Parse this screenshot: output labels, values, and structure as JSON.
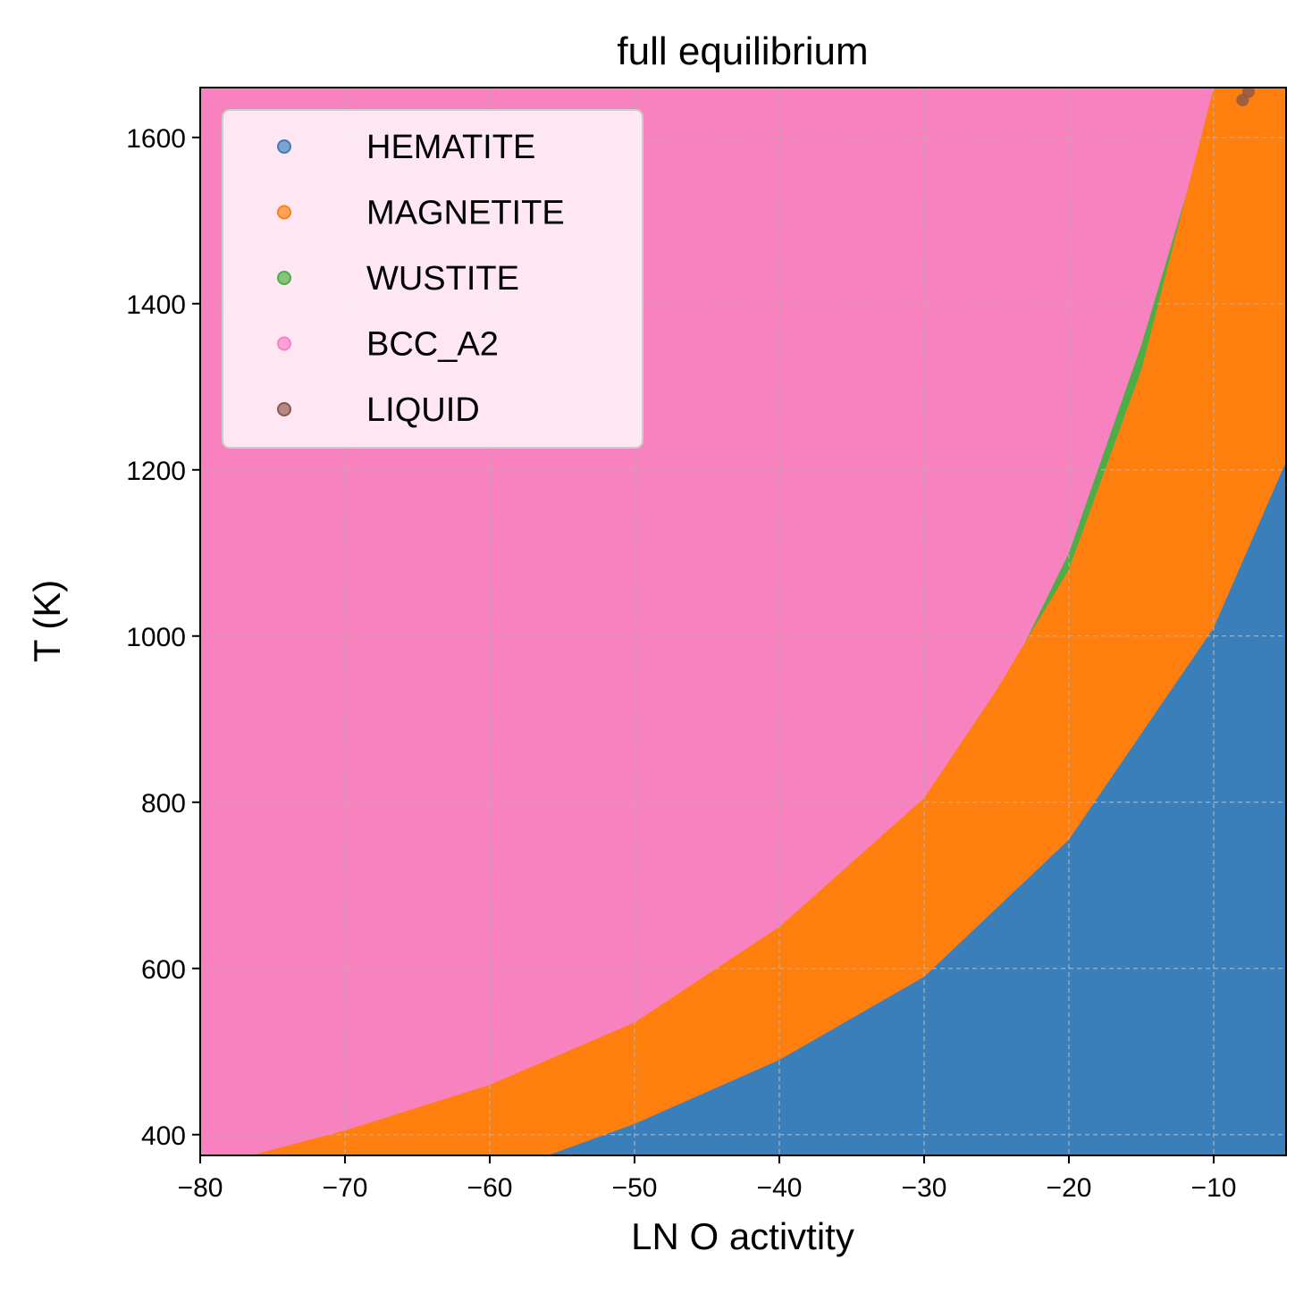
{
  "chart_data": {
    "type": "scatter",
    "title": "full equilibrium",
    "xlabel": "LN O activtity",
    "ylabel": "T (K)",
    "xlim": [
      -80,
      -5
    ],
    "ylim": [
      375,
      1660
    ],
    "xticks": [
      -80,
      -70,
      -60,
      -50,
      -40,
      -30,
      -20,
      -10
    ],
    "yticks": [
      400,
      600,
      800,
      1000,
      1200,
      1400,
      1600
    ],
    "xtick_labels": [
      "−80",
      "−70",
      "−60",
      "−50",
      "−40",
      "−30",
      "−20",
      "−10"
    ],
    "ytick_labels": [
      "400",
      "600",
      "800",
      "1000",
      "1200",
      "1400",
      "1600"
    ],
    "grid": true,
    "legend_position": "top-left",
    "series": [
      {
        "name": "HEMATITE",
        "color": "#3a7fba"
      },
      {
        "name": "MAGNETITE",
        "color": "#ff7f0e"
      },
      {
        "name": "WUSTITE",
        "color": "#4cae44"
      },
      {
        "name": "BCC_A2",
        "color": "#f882c0"
      },
      {
        "name": "LIQUID",
        "color": "#8c564b"
      }
    ],
    "phase_boundaries": {
      "hematite_magnetite": [
        [
          -56,
          375
        ],
        [
          -50,
          413
        ],
        [
          -40,
          490
        ],
        [
          -30,
          590
        ],
        [
          -20,
          755
        ],
        [
          -10,
          1010
        ],
        [
          -5,
          1210
        ]
      ],
      "magnetite_bcc_a2": [
        [
          -76.5,
          375
        ],
        [
          -70,
          405
        ],
        [
          -60,
          460
        ],
        [
          -50,
          535
        ],
        [
          -40,
          650
        ],
        [
          -30,
          805
        ],
        [
          -25,
          935
        ],
        [
          -20,
          1080
        ],
        [
          -15,
          1320
        ],
        [
          -10,
          1660
        ]
      ],
      "wustite_bcc_a2": [
        [
          -24.5,
          940
        ],
        [
          -20,
          1100
        ],
        [
          -15,
          1350
        ],
        [
          -12,
          1525
        ],
        [
          -9.8,
          1660
        ]
      ],
      "magnetite_wustite": [
        [
          -24.5,
          940
        ],
        [
          -20,
          1080
        ],
        [
          -15,
          1320
        ],
        [
          -12,
          1475
        ],
        [
          -8,
          1660
        ]
      ],
      "liquid_points": [
        [
          -8,
          1645
        ],
        [
          -7.6,
          1655
        ]
      ]
    }
  }
}
